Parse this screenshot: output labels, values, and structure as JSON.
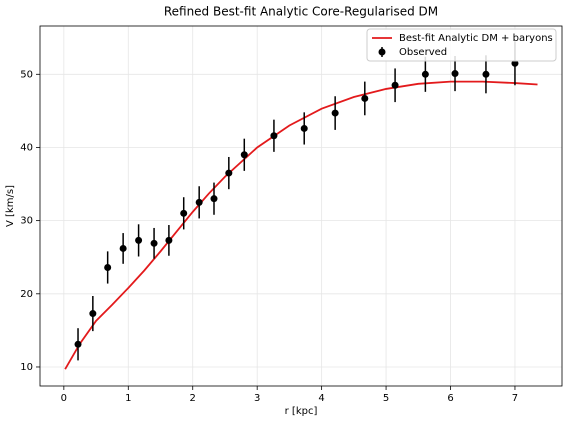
{
  "chart_data": {
    "type": "line",
    "title": "Refined Best-fit Analytic Core-Regularised DM",
    "x_label": "r [kpc]",
    "y_label": "V [km/s]",
    "xlim": [
      -0.37,
      7.73
    ],
    "ylim": [
      7.4,
      56.6
    ],
    "xticks": [
      0,
      1,
      2,
      3,
      4,
      5,
      6,
      7
    ],
    "yticks": [
      10,
      20,
      30,
      40,
      50
    ],
    "grid": true,
    "legend": "upper right",
    "series": [
      {
        "name": "Best-fit Analytic DM + baryons",
        "color": "#e31a1c",
        "x": [
          0.02,
          0.25,
          0.5,
          0.75,
          1,
          1.25,
          1.5,
          1.75,
          2,
          2.25,
          2.5,
          3,
          3.5,
          4,
          4.5,
          5,
          5.5,
          6,
          6.5,
          7,
          7.35
        ],
        "values": [
          9.7,
          13.2,
          16.3,
          18.5,
          20.8,
          23.2,
          25.8,
          28.5,
          31.2,
          33.7,
          36,
          40,
          43,
          45.3,
          46.9,
          48,
          48.7,
          49,
          49,
          48.8,
          48.6
        ]
      },
      {
        "name": "Observed",
        "color": "#000000",
        "x": [
          0.22,
          0.45,
          0.68,
          0.92,
          1.16,
          1.4,
          1.63,
          1.86,
          2.1,
          2.33,
          2.56,
          2.8,
          3.26,
          3.73,
          4.21,
          4.67,
          5.14,
          5.61,
          6.07,
          6.55,
          7.0
        ],
        "values": [
          13.1,
          17.3,
          23.6,
          26.2,
          27.3,
          26.9,
          27.3,
          31.0,
          32.5,
          33.0,
          36.5,
          39.0,
          41.6,
          42.6,
          44.7,
          46.7,
          48.5,
          50.0,
          50.1,
          50.0,
          51.5
        ],
        "errors": [
          2.2,
          2.4,
          2.2,
          2.1,
          2.2,
          2.1,
          2.1,
          2.2,
          2.2,
          2.2,
          2.2,
          2.2,
          2.2,
          2.2,
          2.3,
          2.3,
          2.3,
          2.4,
          2.4,
          2.6,
          3.0
        ]
      }
    ]
  }
}
